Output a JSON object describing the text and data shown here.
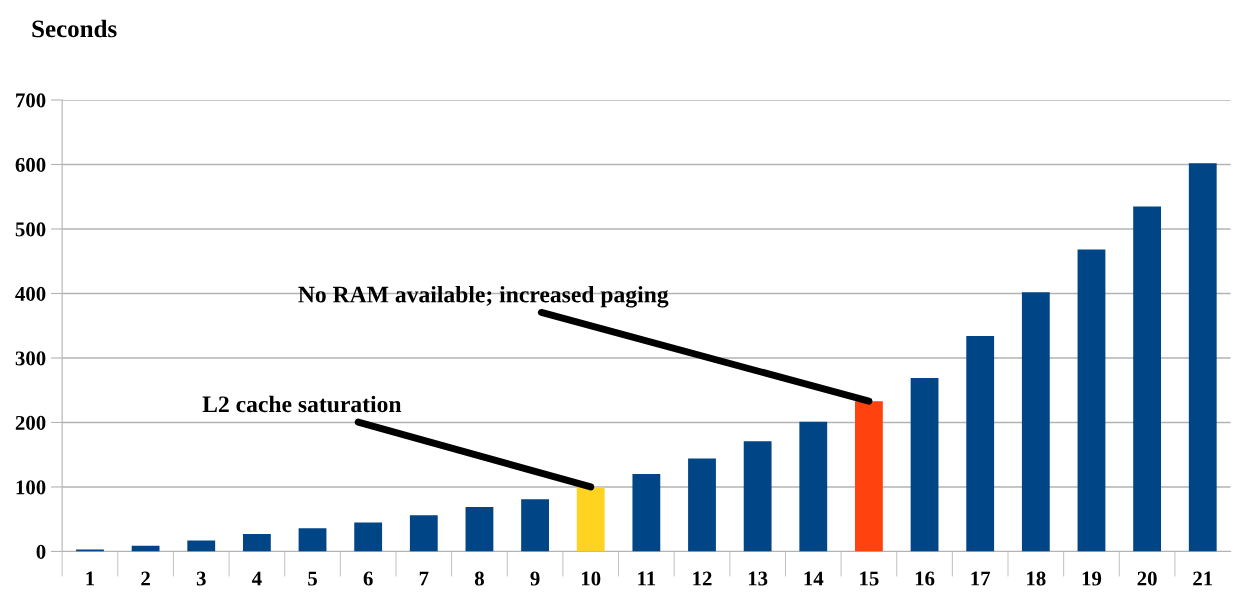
{
  "chart_data": {
    "type": "bar",
    "title": "Seconds",
    "categories": [
      "1",
      "2",
      "3",
      "4",
      "5",
      "6",
      "7",
      "8",
      "9",
      "10",
      "11",
      "12",
      "13",
      "14",
      "15",
      "16",
      "17",
      "18",
      "19",
      "20",
      "21"
    ],
    "values": [
      3,
      9,
      17,
      27,
      36,
      45,
      56,
      69,
      81,
      100,
      120,
      144,
      171,
      201,
      233,
      269,
      334,
      402,
      468,
      535,
      602
    ],
    "colors": [
      "#004586",
      "#004586",
      "#004586",
      "#004586",
      "#004586",
      "#004586",
      "#004586",
      "#004586",
      "#004586",
      "#ffd320",
      "#004586",
      "#004586",
      "#004586",
      "#004586",
      "#ff420e",
      "#004586",
      "#004586",
      "#004586",
      "#004586",
      "#004586",
      "#004586"
    ],
    "ylim": [
      0,
      700
    ],
    "yticks": [
      0,
      100,
      200,
      300,
      400,
      500,
      600,
      700
    ],
    "grid": "y",
    "legend": false,
    "annotations": [
      {
        "text": "L2 cache saturation",
        "x": "10",
        "y": 100
      },
      {
        "text": "No RAM available; increased paging",
        "x": "15",
        "y": 233
      }
    ]
  }
}
